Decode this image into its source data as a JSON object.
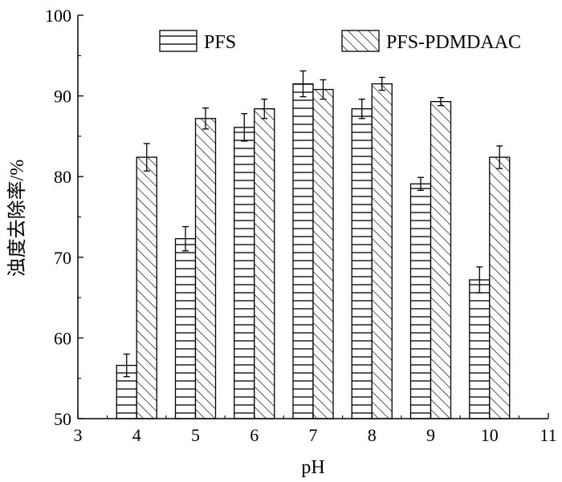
{
  "chart_data": {
    "type": "bar",
    "xlabel": "pH",
    "ylabel": "浊度去除率/%",
    "xlim": [
      3,
      11
    ],
    "ylim": [
      50,
      100
    ],
    "xticks": [
      "3",
      "4",
      "5",
      "6",
      "7",
      "8",
      "9",
      "10",
      "11"
    ],
    "yticks": [
      "50",
      "60",
      "70",
      "80",
      "90",
      "100"
    ],
    "categories": [
      "4",
      "5",
      "6",
      "7",
      "8",
      "9",
      "10"
    ],
    "series": [
      {
        "name": "PFS",
        "pattern": "horizontal-lines",
        "values": [
          56.6,
          72.3,
          86.1,
          91.5,
          88.4,
          79.1,
          67.2
        ],
        "errors": [
          1.4,
          1.5,
          1.7,
          1.6,
          1.2,
          0.8,
          1.6
        ]
      },
      {
        "name": "PFS-PDMDAAC",
        "pattern": "diagonal-hatch",
        "values": [
          82.4,
          87.2,
          88.4,
          90.8,
          91.5,
          89.3,
          82.4
        ],
        "errors": [
          1.7,
          1.3,
          1.2,
          1.2,
          0.8,
          0.5,
          1.4
        ]
      }
    ],
    "error_bars": true,
    "grid": false,
    "legend": "top"
  }
}
